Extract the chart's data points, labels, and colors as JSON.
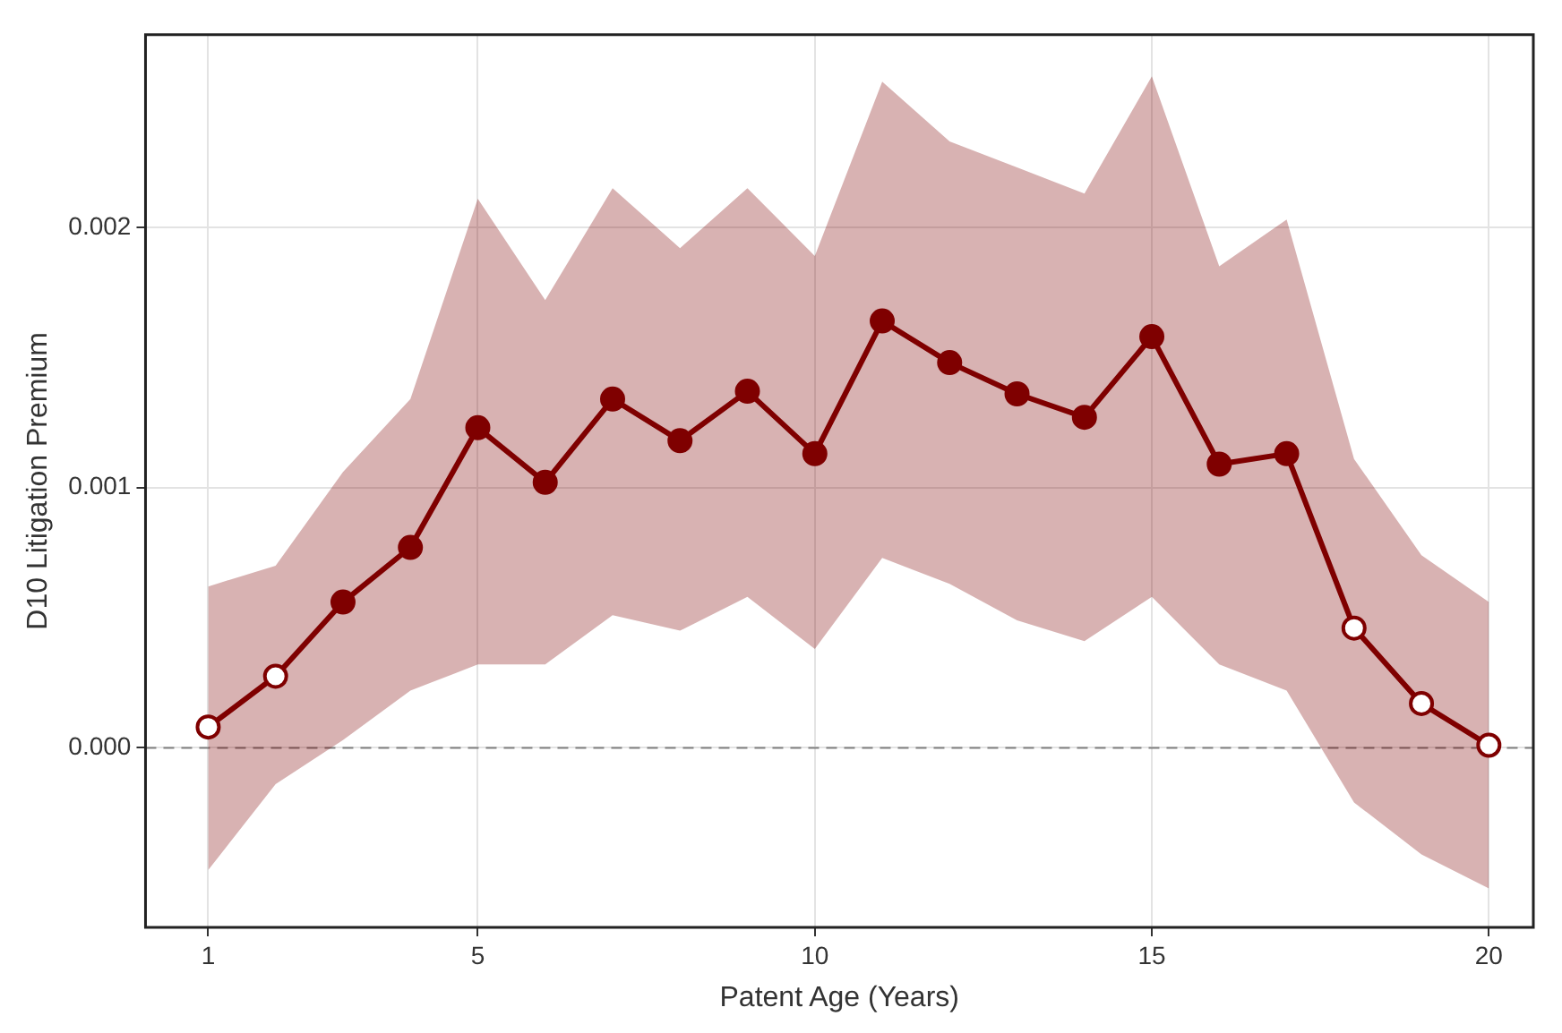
{
  "chart_data": {
    "type": "line",
    "xlabel": "Patent Age (Years)",
    "ylabel": "D10 Litigation Premium",
    "x": [
      1,
      2,
      3,
      4,
      5,
      6,
      7,
      8,
      9,
      10,
      11,
      12,
      13,
      14,
      15,
      16,
      17,
      18,
      19,
      20
    ],
    "series": [
      {
        "color": "#7f0000",
        "colors": [
          "#ffffff",
          "#ffffff",
          "#7f0000",
          "#7f0000",
          "#7f0000",
          "#7f0000",
          "#7f0000",
          "#7f0000",
          "#7f0000",
          "#7f0000",
          "#7f0000",
          "#7f0000",
          "#7f0000",
          "#7f0000",
          "#7f0000",
          "#7f0000",
          "#7f0000",
          "#ffffff",
          "#ffffff",
          "#ffffff"
        ],
        "values": [
          8e-05,
          0.000275,
          0.00056,
          0.00077,
          0.00123,
          0.00102,
          0.00134,
          0.00118,
          0.00137,
          0.00113,
          0.00164,
          0.00148,
          0.00136,
          0.00127,
          0.00158,
          0.00109,
          0.00113,
          0.00046,
          0.00017,
          1e-05
        ],
        "upper": [
          0.00062,
          0.0007,
          0.00106,
          0.00134,
          0.00211,
          0.00172,
          0.00215,
          0.00192,
          0.00215,
          0.00189,
          0.00256,
          0.00233,
          0.00223,
          0.00213,
          0.00258,
          0.00185,
          0.00203,
          0.00111,
          0.00074,
          0.00056
        ],
        "lower": [
          -0.00047,
          -0.00014,
          3e-05,
          0.00022,
          0.00032,
          0.00032,
          0.00051,
          0.00045,
          0.00058,
          0.00038,
          0.00073,
          0.00063,
          0.00049,
          0.00041,
          0.00058,
          0.00032,
          0.00022,
          -0.00021,
          -0.00041,
          -0.00054
        ]
      }
    ],
    "xlim": [
      0.07,
      20.66
    ],
    "xticks": [
      1,
      5,
      10,
      15,
      20
    ],
    "ylim": [
      -0.00069,
      0.00274
    ],
    "yticks": [
      {
        "value": 0,
        "label": "0.000"
      },
      {
        "value": 0.001,
        "label": "0.001"
      },
      {
        "value": 0.002,
        "label": "0.002"
      }
    ],
    "ref_lines": [
      {
        "axis": "y",
        "value": 0,
        "color": "#7f7f7f",
        "line_style": "dashed"
      }
    ],
    "grid": true,
    "legend": false,
    "marker": "circle",
    "line_style": "solid"
  }
}
